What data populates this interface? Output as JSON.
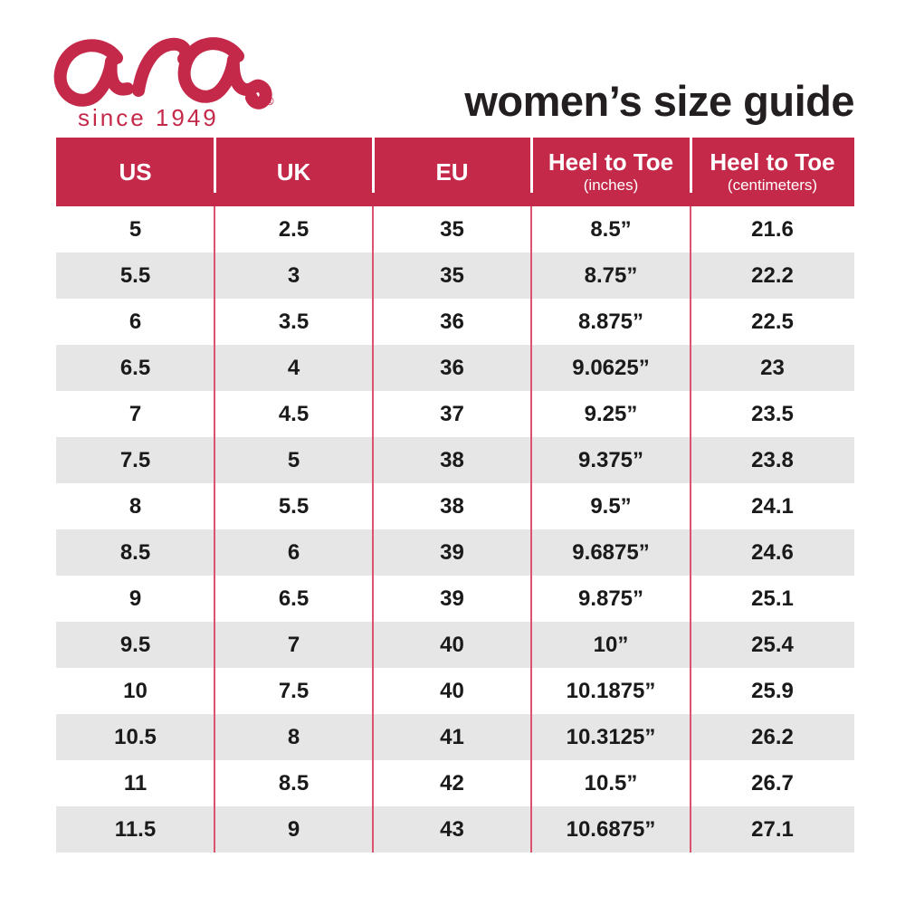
{
  "brand": {
    "logo_text": "ara",
    "registered_mark": "®",
    "tagline": "since 1949",
    "logo_color": "#C5294A"
  },
  "page_title": "women’s size guide",
  "colors": {
    "header_bg": "#C5294A",
    "header_text": "#FFFFFF",
    "row_bg": "#FFFFFF",
    "row_alt_bg": "#E6E6E6",
    "body_divider": "#DC5372",
    "body_text": "#1A1A1A"
  },
  "table": {
    "columns": [
      {
        "label": "US",
        "sublabel": ""
      },
      {
        "label": "UK",
        "sublabel": ""
      },
      {
        "label": "EU",
        "sublabel": ""
      },
      {
        "label": "Heel to Toe",
        "sublabel": "(inches)"
      },
      {
        "label": "Heel to Toe",
        "sublabel": "(centimeters)"
      }
    ],
    "rows": [
      [
        "5",
        "2.5",
        "35",
        "8.5”",
        "21.6"
      ],
      [
        "5.5",
        "3",
        "35",
        "8.75”",
        "22.2"
      ],
      [
        "6",
        "3.5",
        "36",
        "8.875”",
        "22.5"
      ],
      [
        "6.5",
        "4",
        "36",
        "9.0625”",
        "23"
      ],
      [
        "7",
        "4.5",
        "37",
        "9.25”",
        "23.5"
      ],
      [
        "7.5",
        "5",
        "38",
        "9.375”",
        "23.8"
      ],
      [
        "8",
        "5.5",
        "38",
        "9.5”",
        "24.1"
      ],
      [
        "8.5",
        "6",
        "39",
        "9.6875”",
        "24.6"
      ],
      [
        "9",
        "6.5",
        "39",
        "9.875”",
        "25.1"
      ],
      [
        "9.5",
        "7",
        "40",
        "10”",
        "25.4"
      ],
      [
        "10",
        "7.5",
        "40",
        "10.1875”",
        "25.9"
      ],
      [
        "10.5",
        "8",
        "41",
        "10.3125”",
        "26.2"
      ],
      [
        "11",
        "8.5",
        "42",
        "10.5”",
        "26.7"
      ],
      [
        "11.5",
        "9",
        "43",
        "10.6875”",
        "27.1"
      ]
    ]
  }
}
